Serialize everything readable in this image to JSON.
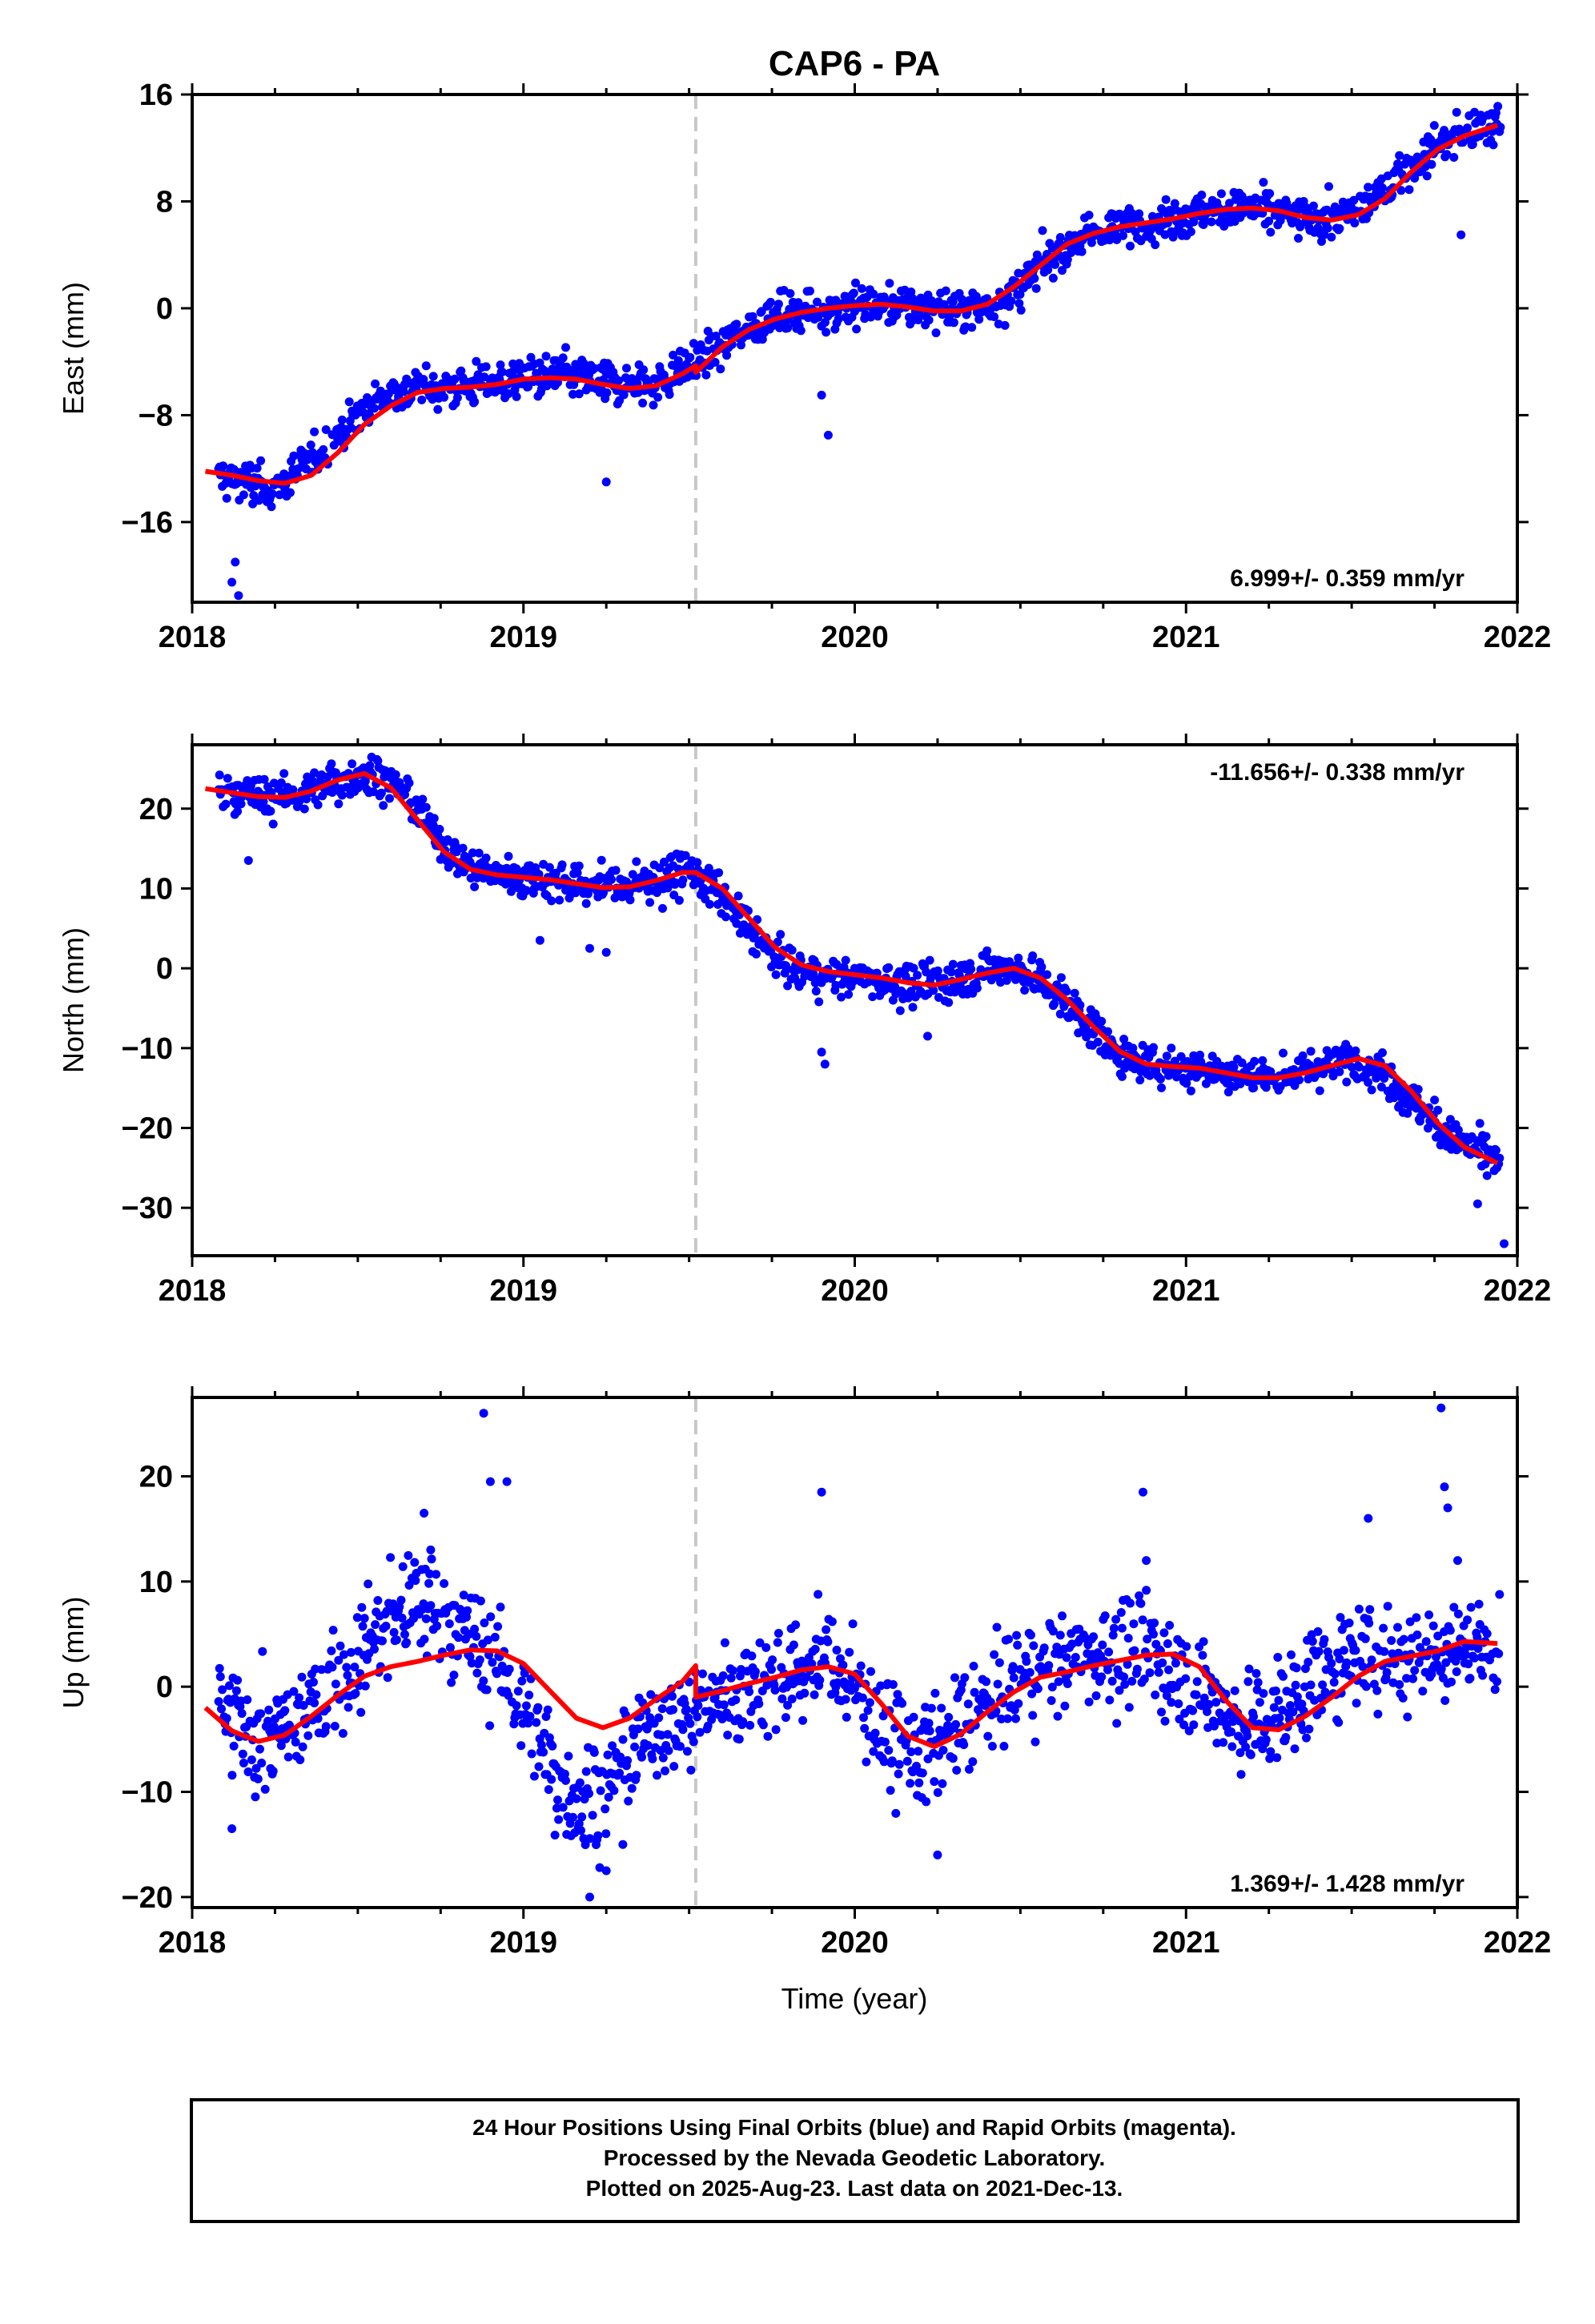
{
  "title": "CAP6 - PA",
  "x_label": "Time (year)",
  "footer": {
    "line1": "24 Hour Positions Using Final Orbits (blue) and Rapid Orbits (magenta).",
    "line2": "Processed by the Nevada Geodetic Laboratory.",
    "line3": "Plotted on 2025-Aug-23. Last data on 2021-Dec-13."
  },
  "colors": {
    "final_orbit_points": "#0000ff",
    "model_fit": "#ff0000",
    "equipment_change": "#c8c8c8",
    "frame": "#000000"
  },
  "chart_data": [
    {
      "type": "scatter",
      "ylabel": "East (mm)",
      "xlim": [
        2018,
        2022
      ],
      "ylim": [
        -22,
        16
      ],
      "xticks": [
        2018,
        2019,
        2020,
        2021,
        2022
      ],
      "yticks": [
        -16,
        -8,
        0,
        8,
        16
      ],
      "equipment_change_x": 2019.52,
      "rate_label": "6.999+/- 0.359 mm/yr",
      "rate_position": "bottom-right",
      "data_range": [
        2018.08,
        2021.95
      ],
      "series": [
        {
          "kind": "points",
          "color": "#0000ff",
          "x": [
            2018.08,
            2018.17,
            2018.25,
            2018.33,
            2018.42,
            2018.5,
            2018.58,
            2018.67,
            2018.75,
            2018.83,
            2018.92,
            2019.0,
            2019.08,
            2019.17,
            2019.25,
            2019.33,
            2019.42,
            2019.5,
            2019.52,
            2019.6,
            2019.67,
            2019.75,
            2019.83,
            2019.92,
            2020.0,
            2020.08,
            2020.17,
            2020.25,
            2020.33,
            2020.42,
            2020.5,
            2020.58,
            2020.67,
            2020.75,
            2020.83,
            2020.92,
            2021.0,
            2021.08,
            2021.17,
            2021.25,
            2021.33,
            2021.42,
            2021.5,
            2021.58,
            2021.67,
            2021.75,
            2021.83,
            2021.92,
            2021.95
          ],
          "y": [
            -12.5,
            -13.0,
            -13.5,
            -12.0,
            -10.0,
            -8.0,
            -6.5,
            -6.0,
            -6.0,
            -5.8,
            -5.5,
            -5.2,
            -5.0,
            -5.2,
            -5.5,
            -5.8,
            -5.5,
            -4.2,
            -4.0,
            -2.8,
            -1.5,
            -0.7,
            -0.3,
            0.0,
            0.2,
            0.3,
            0.1,
            -0.1,
            -0.2,
            0.2,
            1.5,
            3.5,
            5.0,
            5.8,
            6.3,
            6.6,
            7.0,
            7.3,
            7.5,
            7.3,
            6.8,
            6.7,
            7.0,
            8.5,
            10.5,
            12.0,
            13.0,
            13.5,
            13.8
          ]
        },
        {
          "kind": "outliers",
          "color": "#0000ff",
          "x": [
            2018.12,
            2018.13,
            2018.14,
            2019.25,
            2019.9,
            2019.92,
            2021.83
          ],
          "y": [
            -20.5,
            -19.0,
            -21.5,
            -13.0,
            -6.5,
            -9.5,
            5.5
          ]
        },
        {
          "kind": "model",
          "color": "#ff0000",
          "x": [
            2018.04,
            2018.12,
            2018.2,
            2018.28,
            2018.36,
            2018.44,
            2018.52,
            2018.6,
            2018.68,
            2018.76,
            2018.84,
            2018.92,
            2019.0,
            2019.08,
            2019.16,
            2019.24,
            2019.32,
            2019.4,
            2019.48,
            2019.52,
            2019.52,
            2019.6,
            2019.68,
            2019.76,
            2019.84,
            2019.92,
            2020.0,
            2020.08,
            2020.16,
            2020.24,
            2020.32,
            2020.4,
            2020.48,
            2020.56,
            2020.64,
            2020.72,
            2020.8,
            2020.88,
            2020.96,
            2021.04,
            2021.12,
            2021.2,
            2021.28,
            2021.36,
            2021.44,
            2021.52,
            2021.6,
            2021.68,
            2021.76,
            2021.84,
            2021.94
          ],
          "y": [
            -12.2,
            -12.5,
            -12.9,
            -13.1,
            -12.5,
            -10.8,
            -8.7,
            -7.3,
            -6.3,
            -6.0,
            -5.9,
            -5.7,
            -5.3,
            -5.2,
            -5.3,
            -5.7,
            -6.0,
            -5.8,
            -4.9,
            -4.3,
            -4.8,
            -2.9,
            -1.6,
            -0.8,
            -0.3,
            0.0,
            0.2,
            0.3,
            0.1,
            -0.2,
            -0.2,
            0.3,
            1.6,
            3.2,
            4.8,
            5.6,
            6.1,
            6.4,
            6.7,
            7.1,
            7.4,
            7.5,
            7.3,
            6.8,
            6.6,
            7.0,
            8.2,
            10.2,
            11.9,
            12.9,
            13.7
          ]
        }
      ]
    },
    {
      "type": "scatter",
      "ylabel": "North (mm)",
      "xlim": [
        2018,
        2022
      ],
      "ylim": [
        -36,
        28
      ],
      "xticks": [
        2018,
        2019,
        2020,
        2021,
        2022
      ],
      "yticks": [
        -30,
        -20,
        -10,
        0,
        10,
        20
      ],
      "equipment_change_x": 2019.52,
      "rate_label": "-11.656+/- 0.338 mm/yr",
      "rate_position": "top-right",
      "data_range": [
        2018.08,
        2021.95
      ],
      "series": [
        {
          "kind": "points",
          "color": "#0000ff",
          "x": [
            2018.08,
            2018.17,
            2018.25,
            2018.33,
            2018.42,
            2018.5,
            2018.58,
            2018.67,
            2018.75,
            2018.83,
            2018.92,
            2019.0,
            2019.08,
            2019.17,
            2019.25,
            2019.33,
            2019.42,
            2019.5,
            2019.58,
            2019.67,
            2019.75,
            2019.83,
            2019.92,
            2020.0,
            2020.08,
            2020.17,
            2020.25,
            2020.33,
            2020.42,
            2020.5,
            2020.58,
            2020.67,
            2020.75,
            2020.83,
            2020.92,
            2021.0,
            2021.08,
            2021.17,
            2021.25,
            2021.33,
            2021.42,
            2021.5,
            2021.58,
            2021.67,
            2021.75,
            2021.83,
            2021.92,
            2021.95
          ],
          "y": [
            22.5,
            21.8,
            21.2,
            21.8,
            23.0,
            24.3,
            23.8,
            20.5,
            16.0,
            13.0,
            11.8,
            11.4,
            11.0,
            10.6,
            10.2,
            10.4,
            11.3,
            12.2,
            10.0,
            5.5,
            1.5,
            -0.5,
            -1.0,
            -1.3,
            -1.6,
            -2.2,
            -2.0,
            -1.0,
            0.0,
            0.0,
            -2.0,
            -5.5,
            -9.0,
            -11.5,
            -12.2,
            -12.4,
            -12.7,
            -13.3,
            -13.7,
            -13.2,
            -12.2,
            -11.3,
            -12.5,
            -16.0,
            -19.5,
            -22.0,
            -23.5,
            -24.5
          ]
        },
        {
          "kind": "outliers",
          "color": "#0000ff",
          "x": [
            2018.17,
            2019.05,
            2019.2,
            2019.25,
            2019.42,
            2019.9,
            2019.91,
            2020.22,
            2021.75,
            2021.88,
            2021.96
          ],
          "y": [
            13.5,
            3.5,
            2.5,
            2.0,
            7.5,
            -10.5,
            -12.0,
            -8.5,
            -16.5,
            -29.5,
            -34.5
          ]
        },
        {
          "kind": "model",
          "color": "#ff0000",
          "x": [
            2018.04,
            2018.12,
            2018.2,
            2018.28,
            2018.36,
            2018.44,
            2018.52,
            2018.6,
            2018.68,
            2018.76,
            2018.84,
            2018.92,
            2019.0,
            2019.08,
            2019.16,
            2019.24,
            2019.32,
            2019.4,
            2019.48,
            2019.52,
            2019.6,
            2019.68,
            2019.76,
            2019.84,
            2019.92,
            2020.0,
            2020.08,
            2020.16,
            2020.24,
            2020.32,
            2020.4,
            2020.48,
            2020.56,
            2020.64,
            2020.72,
            2020.8,
            2020.88,
            2020.96,
            2021.04,
            2021.12,
            2021.2,
            2021.28,
            2021.36,
            2021.44,
            2021.52,
            2021.6,
            2021.68,
            2021.76,
            2021.84,
            2021.94
          ],
          "y": [
            22.5,
            22.0,
            21.5,
            21.4,
            22.2,
            23.6,
            24.4,
            22.6,
            18.6,
            14.6,
            12.4,
            11.7,
            11.4,
            11.1,
            10.6,
            10.1,
            10.2,
            11.0,
            12.0,
            12.0,
            10.0,
            6.3,
            2.6,
            0.4,
            -0.4,
            -0.8,
            -1.2,
            -1.8,
            -2.1,
            -1.4,
            -0.6,
            0.0,
            -1.2,
            -3.9,
            -7.3,
            -10.4,
            -12.0,
            -12.3,
            -12.5,
            -13.1,
            -13.7,
            -13.7,
            -13.1,
            -12.2,
            -11.3,
            -12.2,
            -15.4,
            -19.4,
            -22.4,
            -24.4
          ]
        }
      ]
    },
    {
      "type": "scatter",
      "ylabel": "Up (mm)",
      "xlim": [
        2018,
        2022
      ],
      "ylim": [
        -21,
        27.5
      ],
      "xticks": [
        2018,
        2019,
        2020,
        2021,
        2022
      ],
      "yticks": [
        -20,
        -10,
        0,
        10,
        20
      ],
      "equipment_change_x": 2019.52,
      "rate_label": "1.369+/- 1.428 mm/yr",
      "rate_position": "bottom-right",
      "data_range": [
        2018.08,
        2021.95
      ],
      "series": [
        {
          "kind": "points",
          "color": "#0000ff",
          "x": [
            2018.08,
            2018.17,
            2018.25,
            2018.33,
            2018.42,
            2018.5,
            2018.58,
            2018.67,
            2018.75,
            2018.83,
            2018.92,
            2019.0,
            2019.08,
            2019.17,
            2019.25,
            2019.33,
            2019.42,
            2019.5,
            2019.58,
            2019.67,
            2019.75,
            2019.83,
            2019.92,
            2020.0,
            2020.08,
            2020.17,
            2020.25,
            2020.33,
            2020.42,
            2020.5,
            2020.58,
            2020.67,
            2020.75,
            2020.83,
            2020.92,
            2021.0,
            2021.08,
            2021.17,
            2021.25,
            2021.33,
            2021.42,
            2021.5,
            2021.58,
            2021.67,
            2021.75,
            2021.83,
            2021.92,
            2021.95
          ],
          "y": [
            -2.0,
            -4.5,
            -5.0,
            -3.0,
            0.0,
            3.0,
            5.5,
            8.0,
            7.0,
            5.0,
            2.0,
            -2.0,
            -8.0,
            -11.0,
            -10.0,
            -6.0,
            -3.0,
            -3.0,
            -1.0,
            0.0,
            0.5,
            1.5,
            2.5,
            0.0,
            -4.0,
            -6.5,
            -5.5,
            -3.5,
            -1.5,
            1.0,
            2.0,
            2.5,
            3.0,
            3.5,
            2.5,
            1.0,
            -1.5,
            -3.5,
            -3.0,
            -1.0,
            1.5,
            3.0,
            3.0,
            3.0,
            3.5,
            4.0,
            3.5,
            3.0
          ]
        },
        {
          "kind": "outliers",
          "color": "#0000ff",
          "x": [
            2018.12,
            2018.7,
            2018.72,
            2018.88,
            2018.9,
            2018.95,
            2019.2,
            2019.25,
            2019.3,
            2019.9,
            2020.25,
            2020.87,
            2020.88,
            2021.55,
            2021.77,
            2021.78,
            2021.79,
            2021.82
          ],
          "y": [
            -13.5,
            16.5,
            13.0,
            26.0,
            19.5,
            19.5,
            -20.0,
            -17.5,
            -15.0,
            18.5,
            -16.0,
            18.5,
            12.0,
            16.0,
            26.5,
            19.0,
            17.0,
            12.0
          ]
        },
        {
          "kind": "model",
          "color": "#ff0000",
          "x": [
            2018.04,
            2018.12,
            2018.2,
            2018.28,
            2018.36,
            2018.44,
            2018.52,
            2018.6,
            2018.68,
            2018.76,
            2018.84,
            2018.92,
            2019.0,
            2019.08,
            2019.16,
            2019.24,
            2019.32,
            2019.4,
            2019.48,
            2019.52,
            2019.52,
            2019.6,
            2019.68,
            2019.76,
            2019.84,
            2019.92,
            2020.0,
            2020.08,
            2020.16,
            2020.24,
            2020.32,
            2020.4,
            2020.48,
            2020.56,
            2020.64,
            2020.72,
            2020.8,
            2020.88,
            2020.96,
            2021.04,
            2021.12,
            2021.2,
            2021.28,
            2021.36,
            2021.44,
            2021.52,
            2021.6,
            2021.68,
            2021.76,
            2021.84,
            2021.94
          ],
          "y": [
            -2.0,
            -4.2,
            -5.2,
            -4.6,
            -2.8,
            -0.8,
            1.0,
            1.9,
            2.4,
            3.0,
            3.5,
            3.4,
            2.2,
            -0.4,
            -3.0,
            -3.9,
            -3.0,
            -1.2,
            0.5,
            2.0,
            -1.0,
            -0.4,
            0.3,
            0.9,
            1.6,
            1.9,
            1.2,
            -1.6,
            -4.7,
            -5.7,
            -4.5,
            -2.4,
            -0.5,
            0.9,
            1.4,
            2.0,
            2.5,
            3.0,
            3.1,
            1.9,
            -1.3,
            -3.9,
            -4.1,
            -2.8,
            -1.0,
            1.0,
            2.4,
            2.9,
            3.4,
            4.3,
            4.1
          ]
        }
      ]
    }
  ]
}
